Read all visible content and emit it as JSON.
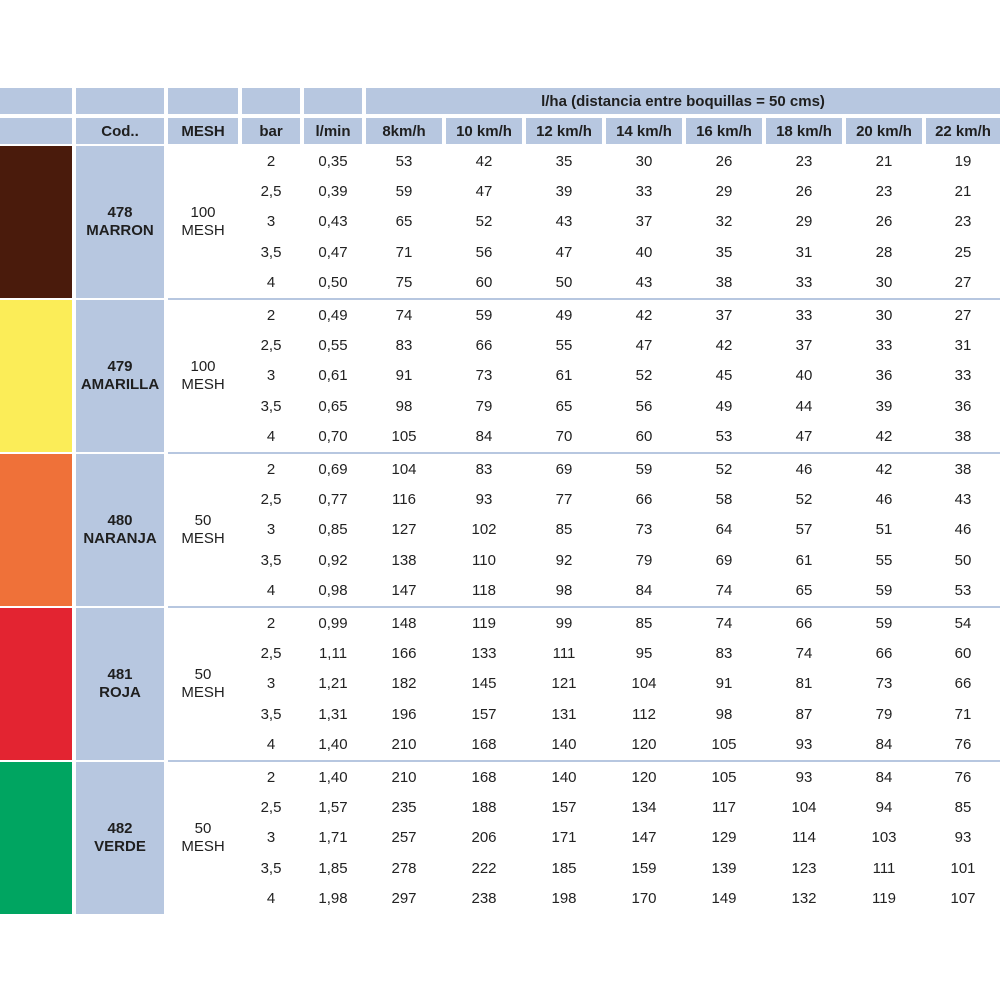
{
  "header": {
    "group_title": "l/ha (distancia entre boquillas = 50 cms)",
    "columns": [
      "Cod..",
      "MESH",
      "bar",
      "l/min",
      "8km/h",
      "10 km/h",
      "12 km/h",
      "14 km/h",
      "16 km/h",
      "18 km/h",
      "20 km/h",
      "22 km/h"
    ]
  },
  "groups": [
    {
      "color": "#4a1b0c",
      "color_icon": "brown-color-swatch",
      "code": "478",
      "name": "MARRON",
      "mesh_num": "100",
      "mesh_label": "MESH",
      "rows": [
        [
          "2",
          "0,35",
          "53",
          "42",
          "35",
          "30",
          "26",
          "23",
          "21",
          "19"
        ],
        [
          "2,5",
          "0,39",
          "59",
          "47",
          "39",
          "33",
          "29",
          "26",
          "23",
          "21"
        ],
        [
          "3",
          "0,43",
          "65",
          "52",
          "43",
          "37",
          "32",
          "29",
          "26",
          "23"
        ],
        [
          "3,5",
          "0,47",
          "71",
          "56",
          "47",
          "40",
          "35",
          "31",
          "28",
          "25"
        ],
        [
          "4",
          "0,50",
          "75",
          "60",
          "50",
          "43",
          "38",
          "33",
          "30",
          "27"
        ]
      ]
    },
    {
      "color": "#fbed58",
      "color_icon": "yellow-color-swatch",
      "code": "479",
      "name": "AMARILLA",
      "mesh_num": "100",
      "mesh_label": "MESH",
      "rows": [
        [
          "2",
          "0,49",
          "74",
          "59",
          "49",
          "42",
          "37",
          "33",
          "30",
          "27"
        ],
        [
          "2,5",
          "0,55",
          "83",
          "66",
          "55",
          "47",
          "42",
          "37",
          "33",
          "31"
        ],
        [
          "3",
          "0,61",
          "91",
          "73",
          "61",
          "52",
          "45",
          "40",
          "36",
          "33"
        ],
        [
          "3,5",
          "0,65",
          "98",
          "79",
          "65",
          "56",
          "49",
          "44",
          "39",
          "36"
        ],
        [
          "4",
          "0,70",
          "105",
          "84",
          "70",
          "60",
          "53",
          "47",
          "42",
          "38"
        ]
      ]
    },
    {
      "color": "#ef7139",
      "color_icon": "orange-color-swatch",
      "code": "480",
      "name": "NARANJA",
      "mesh_num": "50",
      "mesh_label": "MESH",
      "rows": [
        [
          "2",
          "0,69",
          "104",
          "83",
          "69",
          "59",
          "52",
          "46",
          "42",
          "38"
        ],
        [
          "2,5",
          "0,77",
          "116",
          "93",
          "77",
          "66",
          "58",
          "52",
          "46",
          "43"
        ],
        [
          "3",
          "0,85",
          "127",
          "102",
          "85",
          "73",
          "64",
          "57",
          "51",
          "46"
        ],
        [
          "3,5",
          "0,92",
          "138",
          "110",
          "92",
          "79",
          "69",
          "61",
          "55",
          "50"
        ],
        [
          "4",
          "0,98",
          "147",
          "118",
          "98",
          "84",
          "74",
          "65",
          "59",
          "53"
        ]
      ]
    },
    {
      "color": "#e32431",
      "color_icon": "red-color-swatch",
      "code": "481",
      "name": "ROJA",
      "mesh_num": "50",
      "mesh_label": "MESH",
      "rows": [
        [
          "2",
          "0,99",
          "148",
          "119",
          "99",
          "85",
          "74",
          "66",
          "59",
          "54"
        ],
        [
          "2,5",
          "1,11",
          "166",
          "133",
          "111",
          "95",
          "83",
          "74",
          "66",
          "60"
        ],
        [
          "3",
          "1,21",
          "182",
          "145",
          "121",
          "104",
          "91",
          "81",
          "73",
          "66"
        ],
        [
          "3,5",
          "1,31",
          "196",
          "157",
          "131",
          "112",
          "98",
          "87",
          "79",
          "71"
        ],
        [
          "4",
          "1,40",
          "210",
          "168",
          "140",
          "120",
          "105",
          "93",
          "84",
          "76"
        ]
      ]
    },
    {
      "color": "#00a561",
      "color_icon": "green-color-swatch",
      "code": "482",
      "name": "VERDE",
      "mesh_num": "50",
      "mesh_label": "MESH",
      "rows": [
        [
          "2",
          "1,40",
          "210",
          "168",
          "140",
          "120",
          "105",
          "93",
          "84",
          "76"
        ],
        [
          "2,5",
          "1,57",
          "235",
          "188",
          "157",
          "134",
          "117",
          "104",
          "94",
          "85"
        ],
        [
          "3",
          "1,71",
          "257",
          "206",
          "171",
          "147",
          "129",
          "114",
          "103",
          "93"
        ],
        [
          "3,5",
          "1,85",
          "278",
          "222",
          "185",
          "159",
          "139",
          "123",
          "111",
          "101"
        ],
        [
          "4",
          "1,98",
          "297",
          "238",
          "198",
          "170",
          "149",
          "132",
          "119",
          "107"
        ]
      ]
    }
  ]
}
